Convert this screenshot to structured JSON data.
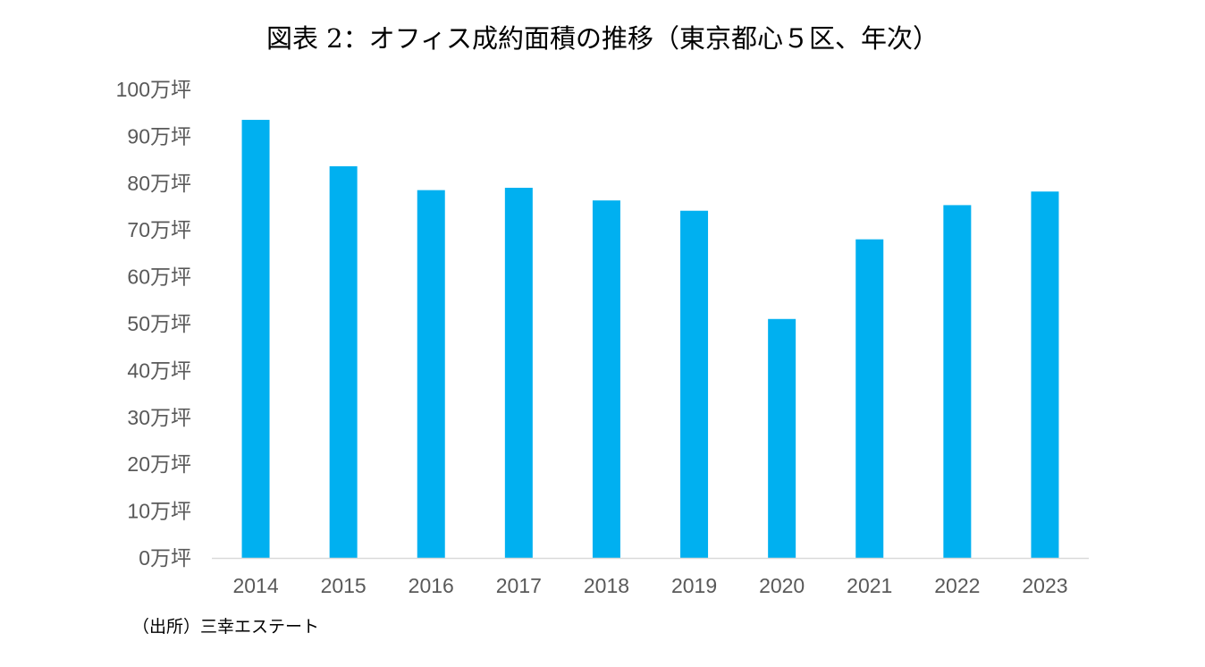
{
  "chart_data": {
    "type": "bar",
    "title": "図表 2：オフィス成約面積の推移（東京都心５区、年次）",
    "categories": [
      "2014",
      "2015",
      "2016",
      "2017",
      "2018",
      "2019",
      "2020",
      "2021",
      "2022",
      "2023"
    ],
    "values": [
      93.5,
      83.6,
      78.5,
      79.0,
      76.3,
      74.1,
      51.0,
      68.0,
      75.3,
      78.2
    ],
    "unit": "万坪",
    "ylim": [
      0,
      100
    ],
    "ytick_values": [
      0,
      10,
      20,
      30,
      40,
      50,
      60,
      70,
      80,
      90,
      100
    ],
    "ytick_labels": [
      "0万坪",
      "10万坪",
      "20万坪",
      "30万坪",
      "40万坪",
      "50万坪",
      "60万坪",
      "70万坪",
      "80万坪",
      "90万坪",
      "100万坪"
    ],
    "xlabel": "",
    "ylabel": "",
    "grid": false,
    "legend": "none",
    "bar_color": "#00B0F0"
  },
  "source": "（出所）三幸エステート"
}
